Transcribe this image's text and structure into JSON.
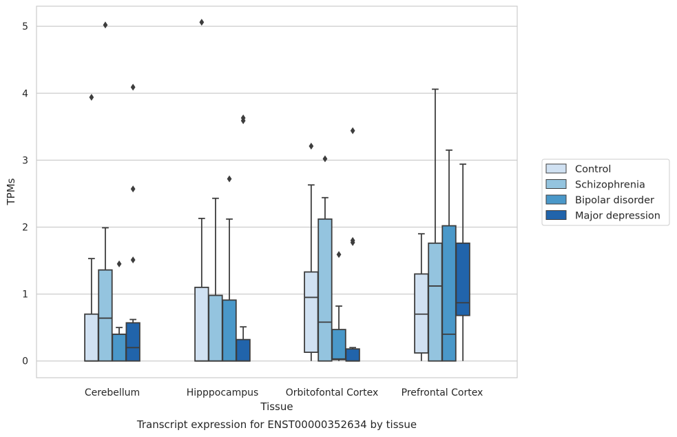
{
  "chart_data": {
    "type": "box",
    "title": "",
    "caption": "Transcript expression for ENST00000352634 by tissue",
    "xlabel": "Tissue",
    "ylabel": "TPMs",
    "ylim": [
      -0.25,
      5.3
    ],
    "yticks": [
      0,
      1,
      2,
      3,
      4,
      5
    ],
    "grid": "horizontal",
    "legend_position": "right",
    "categories": [
      "Cerebellum",
      "Hipppocampus",
      "Orbitofontal Cortex",
      "Prefrontal Cortex"
    ],
    "series": [
      {
        "name": "Control",
        "color": "#d0e1f2",
        "boxes": [
          {
            "whislo": 0,
            "q1": 0,
            "med": 0,
            "q3": 0.7,
            "whishi": 1.53,
            "fliers": [
              3.94
            ]
          },
          {
            "whislo": 0,
            "q1": 0,
            "med": 0,
            "q3": 1.1,
            "whishi": 2.13,
            "fliers": [
              5.06
            ]
          },
          {
            "whislo": 0,
            "q1": 0.13,
            "med": 0.95,
            "q3": 1.33,
            "whishi": 2.63,
            "fliers": [
              3.21
            ]
          },
          {
            "whislo": 0,
            "q1": 0.12,
            "med": 0.7,
            "q3": 1.3,
            "whishi": 1.9,
            "fliers": []
          }
        ]
      },
      {
        "name": "Schizophrenia",
        "color": "#94c4df",
        "boxes": [
          {
            "whislo": 0,
            "q1": 0,
            "med": 0.64,
            "q3": 1.36,
            "whishi": 1.99,
            "fliers": [
              5.02
            ]
          },
          {
            "whislo": 0,
            "q1": 0,
            "med": 0,
            "q3": 0.98,
            "whishi": 2.43,
            "fliers": []
          },
          {
            "whislo": 0,
            "q1": 0,
            "med": 0.58,
            "q3": 2.12,
            "whishi": 2.44,
            "fliers": [
              3.02
            ]
          },
          {
            "whislo": 0,
            "q1": 0,
            "med": 1.12,
            "q3": 1.76,
            "whishi": 4.06,
            "fliers": []
          }
        ]
      },
      {
        "name": "Bipolar disorder",
        "color": "#4a98c9",
        "boxes": [
          {
            "whislo": 0,
            "q1": 0,
            "med": 0.4,
            "q3": 0.4,
            "whishi": 0.5,
            "fliers": [
              1.45
            ]
          },
          {
            "whislo": 0,
            "q1": 0,
            "med": 0,
            "q3": 0.91,
            "whishi": 2.12,
            "fliers": [
              2.72
            ]
          },
          {
            "whislo": 0,
            "q1": 0.02,
            "med": 0.03,
            "q3": 0.47,
            "whishi": 0.82,
            "fliers": [
              1.59
            ]
          },
          {
            "whislo": 0,
            "q1": 0,
            "med": 0.4,
            "q3": 2.02,
            "whishi": 3.15,
            "fliers": []
          }
        ]
      },
      {
        "name": "Major depression",
        "color": "#2164ab",
        "boxes": [
          {
            "whislo": 0,
            "q1": 0,
            "med": 0.2,
            "q3": 0.57,
            "whishi": 0.62,
            "fliers": [
              1.51,
              2.57,
              4.09
            ]
          },
          {
            "whislo": 0,
            "q1": 0,
            "med": 0,
            "q3": 0.32,
            "whishi": 0.51,
            "fliers": [
              3.59,
              3.63
            ]
          },
          {
            "whislo": 0,
            "q1": 0,
            "med": 0,
            "q3": 0.18,
            "whishi": 0.2,
            "fliers": [
              1.77,
              1.8,
              3.44
            ]
          },
          {
            "whislo": 0,
            "q1": 0.68,
            "med": 0.87,
            "q3": 1.76,
            "whishi": 2.94,
            "fliers": []
          }
        ]
      }
    ]
  }
}
